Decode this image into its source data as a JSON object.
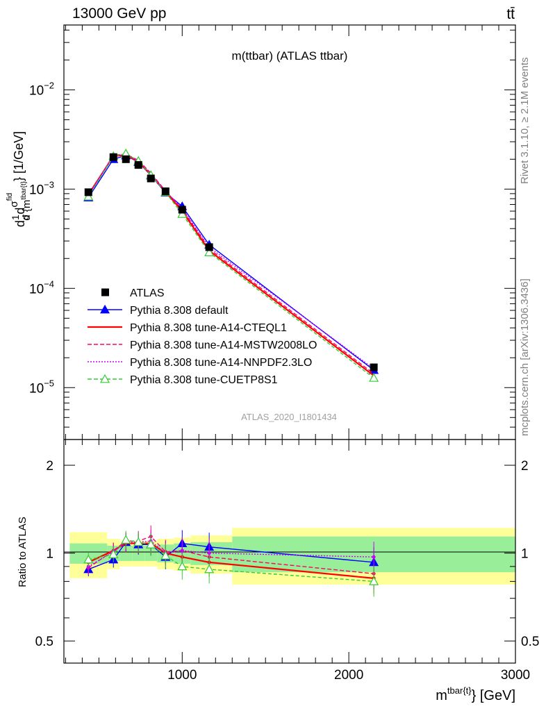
{
  "header": {
    "left": "13000 GeV pp",
    "right": "tt̄"
  },
  "main_panel": {
    "title": "m(ttbar) (ATLAS ttbar)",
    "ylabel": "d σ/d m(tbar{t}) [1/GeV]",
    "ylabel_parts": {
      "prefix": "d",
      "frac_num": "1",
      "frac_den": "σ",
      "d": "d",
      "sig": "σ",
      "sig_sup": "fid",
      "den": "d {m",
      "den_sub": "tbar{t}",
      "den_tail": "} [1/GeV]"
    },
    "watermark": "ATLAS_2020_I1801434",
    "y_ticks": [
      {
        "base": "10",
        "exp": "−2"
      },
      {
        "base": "10",
        "exp": "−3"
      },
      {
        "base": "10",
        "exp": "−4"
      },
      {
        "base": "10",
        "exp": "−5"
      }
    ]
  },
  "ratio_panel": {
    "ylabel": "Ratio to ATLAS",
    "y_ticks": [
      "2",
      "1",
      "0.5"
    ]
  },
  "xaxis": {
    "label_base": "m",
    "label_sup": "tbar{t}",
    "label_tail": "} [GeV]",
    "ticks": [
      "1000",
      "2000",
      "3000"
    ]
  },
  "side": {
    "rivet": "Rivet 3.1.10, ≥ 2.1M events",
    "mcplots": "mcplots.cern.ch [arXiv:1306.3436]"
  },
  "legend": [
    {
      "label": "ATLAS",
      "color": "#000000",
      "marker": "square",
      "line": "none"
    },
    {
      "label": "Pythia 8.308 default",
      "color": "#0000ff",
      "marker": "triangle",
      "line": "solid"
    },
    {
      "label": "Pythia 8.308 tune-A14-CTEQL1",
      "color": "#ff0000",
      "marker": "none",
      "line": "solid"
    },
    {
      "label": "Pythia 8.308 tune-A14-MSTW2008LO",
      "color": "#ff0066",
      "marker": "none",
      "line": "dashed"
    },
    {
      "label": "Pythia 8.308 tune-A14-NNPDF2.3LO",
      "color": "#cc00ff",
      "marker": "none",
      "line": "dotted"
    },
    {
      "label": "Pythia 8.308 tune-CUETP8S1",
      "color": "#33cc33",
      "marker": "open-triangle",
      "line": "dashed"
    }
  ],
  "chart_data": {
    "type": "line",
    "title": "m(ttbar) (ATLAS ttbar)",
    "xlabel": "m(tbar{t}) [GeV]",
    "ylabel": "d σ/d m(tbar{t}) [1/GeV]",
    "xlim": [
      290,
      3000
    ],
    "ylim_log": [
      3e-06,
      0.045
    ],
    "ratio_ylim_log": [
      0.42,
      2.45
    ],
    "bins": [
      [
        325,
        550
      ],
      [
        550,
        625
      ],
      [
        625,
        700
      ],
      [
        700,
        775
      ],
      [
        775,
        850
      ],
      [
        850,
        950
      ],
      [
        950,
        1050
      ],
      [
        1050,
        1300
      ],
      [
        1300,
        3000
      ]
    ],
    "x": [
      437,
      587,
      662,
      737,
      812,
      900,
      1000,
      1162,
      2150
    ],
    "data": {
      "name": "ATLAS",
      "values": [
        0.00093,
        0.0021,
        0.002,
        0.00175,
        0.00128,
        0.00095,
        0.00062,
        0.00026,
        1.6e-05
      ],
      "ratio_band_inner": [
        0.08,
        0.06,
        0.06,
        0.06,
        0.06,
        0.07,
        0.08,
        0.09,
        0.14
      ],
      "ratio_band_outer": [
        0.18,
        0.12,
        0.1,
        0.1,
        0.1,
        0.12,
        0.13,
        0.15,
        0.22
      ]
    },
    "series": [
      {
        "name": "Pythia 8.308 default",
        "color": "#0000ff",
        "dash": "",
        "marker": "triangle",
        "values": [
          0.00082,
          0.002,
          0.00218,
          0.00187,
          0.00137,
          0.00092,
          0.00067,
          0.000275,
          1.5e-05
        ],
        "ratio": [
          0.88,
          0.95,
          1.09,
          1.07,
          1.07,
          0.97,
          1.08,
          1.05,
          0.93
        ]
      },
      {
        "name": "Pythia 8.308 tune-A14-CTEQL1",
        "color": "#ff0000",
        "dash": "",
        "marker": "none",
        "values": [
          0.00088,
          0.00215,
          0.0022,
          0.0019,
          0.00139,
          0.00094,
          0.0006,
          0.00024,
          1.32e-05
        ],
        "ratio": [
          0.93,
          1.02,
          1.08,
          1.08,
          1.08,
          1.0,
          0.97,
          0.93,
          0.82
        ]
      },
      {
        "name": "Pythia 8.308 tune-A14-MSTW2008LO",
        "color": "#ff0066",
        "dash": "6,3",
        "marker": "none",
        "values": [
          0.00086,
          0.0022,
          0.00225,
          0.00195,
          0.00145,
          0.00096,
          0.00063,
          0.00025,
          1.38e-05
        ],
        "ratio": [
          0.89,
          1.02,
          1.1,
          1.1,
          1.14,
          1.01,
          1.02,
          0.97,
          0.85
        ]
      },
      {
        "name": "Pythia 8.308 tune-A14-NNPDF2.3LO",
        "color": "#cc00ff",
        "dash": "2,2",
        "marker": "none",
        "values": [
          0.00087,
          0.00218,
          0.00222,
          0.00192,
          0.00143,
          0.00095,
          0.00064,
          0.00026,
          1.55e-05
        ],
        "ratio": [
          0.9,
          1.01,
          1.09,
          1.09,
          1.1,
          1.0,
          1.02,
          1.0,
          0.97
        ]
      },
      {
        "name": "Pythia 8.308 tune-CUETP8S1",
        "color": "#33cc33",
        "dash": "5,3",
        "marker": "open-triangle",
        "values": [
          0.00084,
          0.00214,
          0.00228,
          0.00192,
          0.00138,
          0.00093,
          0.00056,
          0.00023,
          1.25e-05
        ],
        "ratio": [
          0.95,
          0.99,
          1.11,
          1.09,
          1.07,
          0.98,
          0.9,
          0.88,
          0.8
        ]
      }
    ]
  }
}
